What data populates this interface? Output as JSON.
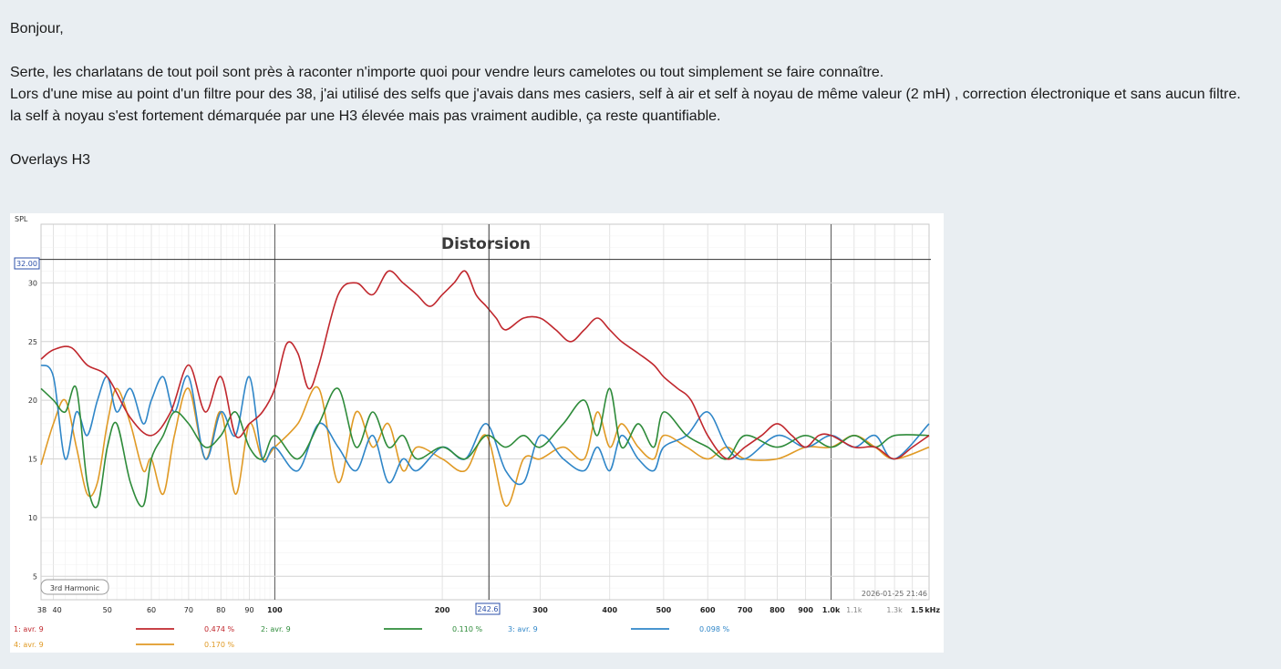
{
  "post": {
    "greeting": "Bonjour,",
    "lines": [
      "Serte, les charlatans de tout poil sont près à raconter n'importe quoi pour vendre leurs camelotes ou tout simplement se faire connaître.",
      "Lors d'une mise au point d'un filtre pour des 38, j'ai utilisé des selfs que j'avais dans mes casiers, self à air et self à noyau de même valeur (2 mH) , correction électronique et sans aucun filtre.",
      "la self à noyau s'est fortement démarquée par une H3 élevée mais pas vraiment audible, ça reste quantifiable."
    ],
    "caption": "Overlays H3"
  },
  "chart": {
    "title": "Distorsion",
    "ylabel": "SPL",
    "cursor_y_label": "32.00",
    "cursor_x_label": "242.6",
    "harmonic_label": "3rd Harmonic",
    "timestamp": "2026-01-25 21:46",
    "unit_label": "kHz",
    "colors": {
      "red": "#c0272d",
      "green": "#2e8b3a",
      "blue": "#2f86c8",
      "orange": "#e09a25"
    }
  },
  "chart_data": {
    "type": "line",
    "title": "Distorsion",
    "xlabel": "",
    "ylabel": "SPL",
    "x_scale": "log",
    "xlim": [
      38,
      1500
    ],
    "ylim": [
      3,
      35
    ],
    "grid": true,
    "cursor": {
      "x": 242.6,
      "y": 32.0
    },
    "x_ticks": [
      {
        "v": 38,
        "t": "38"
      },
      {
        "v": 40,
        "t": "40"
      },
      {
        "v": 50,
        "t": "50"
      },
      {
        "v": 60,
        "t": "60"
      },
      {
        "v": 70,
        "t": "70"
      },
      {
        "v": 80,
        "t": "80"
      },
      {
        "v": 90,
        "t": "90"
      },
      {
        "v": 100,
        "t": "100"
      },
      {
        "v": 200,
        "t": "200"
      },
      {
        "v": 300,
        "t": "300"
      },
      {
        "v": 400,
        "t": "400"
      },
      {
        "v": 500,
        "t": "500"
      },
      {
        "v": 600,
        "t": "600"
      },
      {
        "v": 700,
        "t": "700"
      },
      {
        "v": 800,
        "t": "800"
      },
      {
        "v": 900,
        "t": "900"
      },
      {
        "v": 1000,
        "t": "1.0k"
      },
      {
        "v": 1100,
        "t": "1.1k"
      },
      {
        "v": 1300,
        "t": "1.3k"
      },
      {
        "v": 1500,
        "t": "1.5"
      }
    ],
    "y_ticks": [
      5,
      10,
      15,
      20,
      25,
      30
    ],
    "series": [
      {
        "name": "1: avr. 9",
        "value_label": "0.474 %",
        "color": "#c0272d",
        "x": [
          38,
          40,
          43,
          46,
          50,
          55,
          60,
          65,
          70,
          75,
          80,
          85,
          90,
          95,
          100,
          105,
          110,
          115,
          120,
          130,
          140,
          150,
          160,
          170,
          180,
          190,
          200,
          210,
          220,
          230,
          240,
          250,
          260,
          280,
          300,
          320,
          340,
          360,
          380,
          400,
          420,
          450,
          480,
          500,
          530,
          560,
          600,
          650,
          700,
          750,
          800,
          850,
          900,
          950,
          1000,
          1100,
          1200,
          1300,
          1400,
          1500
        ],
        "y": [
          23.5,
          24.3,
          24.5,
          23,
          22,
          18.5,
          17,
          19,
          23,
          19,
          22,
          17,
          18,
          19,
          21,
          24.8,
          24,
          21,
          23,
          29,
          30,
          29,
          31,
          30,
          29,
          28,
          29,
          30,
          31,
          29,
          28,
          27,
          26,
          27,
          27,
          26,
          25,
          26,
          27,
          26,
          25,
          24,
          23,
          22,
          21,
          20,
          17,
          15,
          16,
          17,
          18,
          17,
          16,
          17,
          17,
          16,
          16,
          15,
          16,
          17
        ]
      },
      {
        "name": "2: avr. 9",
        "value_label": "0.110 %",
        "color": "#2e8b3a",
        "x": [
          38,
          40,
          42,
          44,
          46,
          48,
          50,
          52,
          55,
          58,
          60,
          63,
          66,
          70,
          75,
          80,
          85,
          90,
          95,
          100,
          110,
          120,
          130,
          140,
          150,
          160,
          170,
          180,
          200,
          220,
          240,
          260,
          280,
          300,
          330,
          360,
          380,
          400,
          420,
          450,
          480,
          500,
          550,
          600,
          650,
          700,
          800,
          900,
          1000,
          1100,
          1200,
          1300,
          1500
        ],
        "y": [
          21,
          20,
          19,
          21,
          13,
          11,
          16,
          18,
          13,
          11,
          15,
          17,
          19,
          18,
          16,
          17,
          19,
          16,
          15,
          17,
          15,
          18,
          21,
          16,
          19,
          16,
          17,
          15,
          16,
          15,
          17,
          16,
          17,
          16,
          18,
          20,
          17,
          21,
          16,
          18,
          16,
          19,
          17,
          16,
          15,
          17,
          16,
          17,
          16,
          17,
          16,
          17,
          17
        ]
      },
      {
        "name": "3: avr. 9",
        "value_label": "0.098 %",
        "color": "#2f86c8",
        "x": [
          38,
          40,
          42,
          44,
          46,
          48,
          50,
          52,
          55,
          58,
          60,
          63,
          66,
          70,
          75,
          80,
          85,
          90,
          95,
          100,
          110,
          120,
          130,
          140,
          150,
          160,
          170,
          180,
          200,
          220,
          240,
          260,
          280,
          300,
          330,
          360,
          380,
          400,
          420,
          450,
          480,
          500,
          550,
          600,
          650,
          700,
          800,
          900,
          1000,
          1100,
          1200,
          1300,
          1500
        ],
        "y": [
          23,
          22,
          15,
          19,
          17,
          20,
          22,
          19,
          21,
          18,
          20,
          22,
          19,
          22,
          15,
          19,
          17,
          22,
          15,
          16,
          14,
          18,
          16,
          14,
          17,
          13,
          15,
          14,
          16,
          15,
          18,
          14,
          13,
          17,
          15,
          14,
          16,
          14,
          17,
          15,
          14,
          16,
          17,
          19,
          16,
          15,
          17,
          16,
          17,
          16,
          17,
          15,
          18
        ]
      },
      {
        "name": "4: avr. 9",
        "value_label": "0.170 %",
        "color": "#e09a25",
        "x": [
          38,
          40,
          42,
          44,
          46,
          48,
          50,
          52,
          55,
          58,
          60,
          63,
          66,
          70,
          75,
          80,
          85,
          90,
          95,
          100,
          110,
          120,
          130,
          140,
          150,
          160,
          170,
          180,
          200,
          220,
          240,
          260,
          280,
          300,
          330,
          360,
          380,
          400,
          420,
          450,
          480,
          500,
          550,
          600,
          650,
          700,
          800,
          900,
          1000,
          1100,
          1200,
          1300,
          1500
        ],
        "y": [
          14.5,
          18,
          20,
          16,
          12,
          13,
          18,
          21,
          18,
          14,
          15,
          12,
          17,
          21,
          15,
          19,
          12,
          18,
          15,
          16,
          18,
          21,
          13,
          19,
          16,
          18,
          14,
          16,
          15,
          14,
          17,
          11,
          15,
          15,
          16,
          15,
          19,
          16,
          18,
          16,
          15,
          17,
          16,
          15,
          16,
          15,
          15,
          16,
          16,
          17,
          16,
          15,
          16
        ]
      }
    ]
  }
}
